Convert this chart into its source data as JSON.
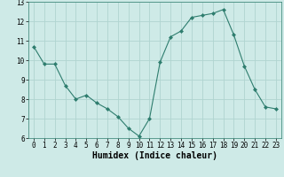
{
  "x": [
    0,
    1,
    2,
    3,
    4,
    5,
    6,
    7,
    8,
    9,
    10,
    11,
    12,
    13,
    14,
    15,
    16,
    17,
    18,
    19,
    20,
    21,
    22,
    23
  ],
  "y": [
    10.7,
    9.8,
    9.8,
    8.7,
    8.0,
    8.2,
    7.8,
    7.5,
    7.1,
    6.5,
    6.1,
    7.0,
    9.9,
    11.2,
    11.5,
    12.2,
    12.3,
    12.4,
    12.6,
    11.3,
    9.7,
    8.5,
    7.6,
    7.5
  ],
  "line_color": "#2e7d6e",
  "marker": "D",
  "marker_size": 2,
  "bg_color": "#ceeae7",
  "grid_color": "#b0d4d0",
  "xlabel": "Humidex (Indice chaleur)",
  "ylim": [
    6,
    13
  ],
  "xlim": [
    -0.5,
    23.5
  ],
  "yticks": [
    6,
    7,
    8,
    9,
    10,
    11,
    12,
    13
  ],
  "xticks": [
    0,
    1,
    2,
    3,
    4,
    5,
    6,
    7,
    8,
    9,
    10,
    11,
    12,
    13,
    14,
    15,
    16,
    17,
    18,
    19,
    20,
    21,
    22,
    23
  ],
  "tick_fontsize": 5.5,
  "xlabel_fontsize": 7,
  "line_width": 0.8
}
